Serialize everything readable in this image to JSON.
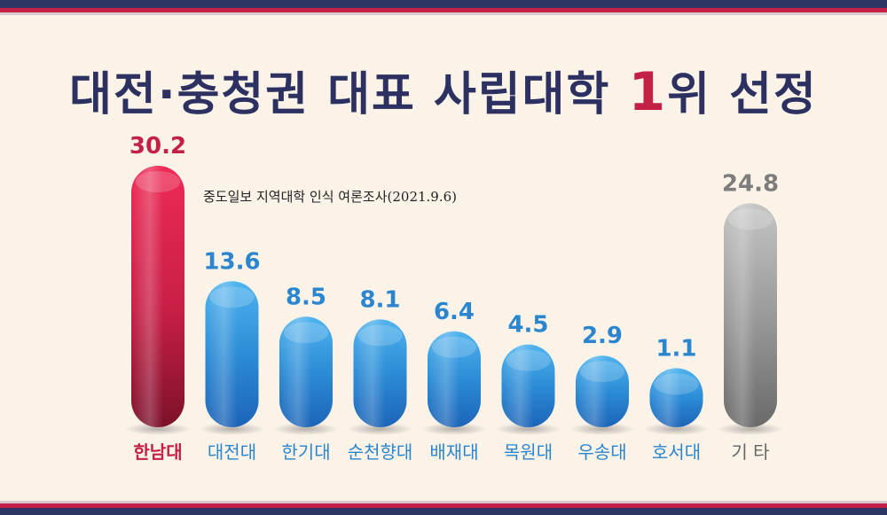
{
  "title": {
    "main": "대전·충청권 대표 사립대학 ",
    "accent": "1",
    "suffix": "위 선정"
  },
  "source": "중도일보 지역대학 인식 여론조사(2021.9.6)",
  "colors": {
    "highlight": "#c41f45",
    "default_bar": "#2e8fd8",
    "other_bar": "#9a9a9a",
    "title": "#2d3161"
  },
  "chart_data": {
    "type": "bar",
    "title": "대전·충청권 대표 사립대학 1위 선정",
    "subtitle": "중도일보 지역대학 인식 여론조사(2021.9.6)",
    "categories": [
      "한남대",
      "대전대",
      "한기대",
      "순천향대",
      "배재대",
      "목원대",
      "우송대",
      "호서대",
      "기 타"
    ],
    "values": [
      30.2,
      13.6,
      8.5,
      8.1,
      6.4,
      4.5,
      2.9,
      1.1,
      24.8
    ],
    "value_labels": [
      "30.2",
      "13.6",
      "8.5",
      "8.1",
      "6.4",
      "4.5",
      "2.9",
      "1.1",
      "24.8"
    ],
    "bar_styles": [
      "highlight",
      "default",
      "default",
      "default",
      "default",
      "default",
      "default",
      "default",
      "other"
    ],
    "xlabel": "",
    "ylabel": "",
    "ylim": [
      0,
      30.2
    ],
    "grid": false,
    "legend": "none"
  }
}
